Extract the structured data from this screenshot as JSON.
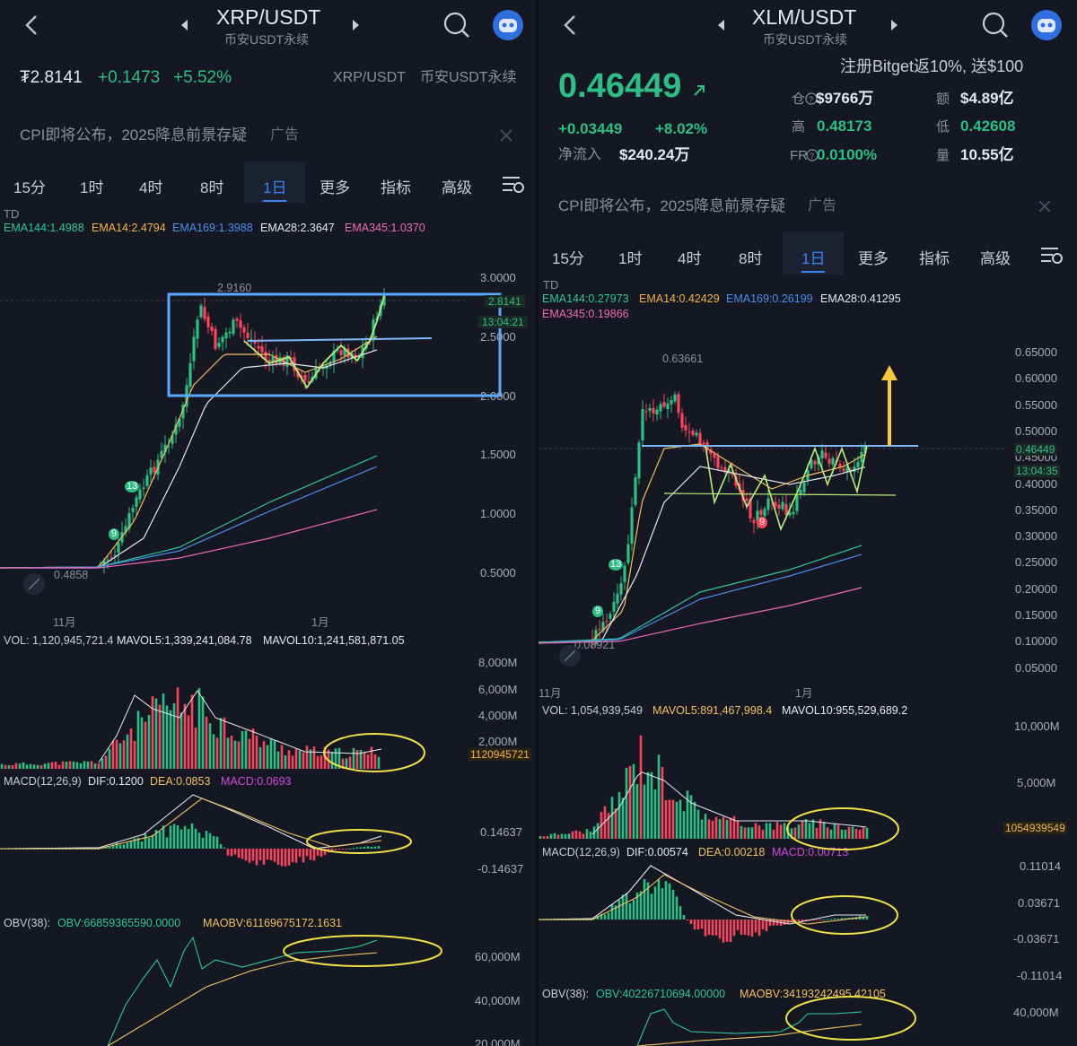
{
  "left": {
    "header": {
      "pair": "XRP/USDT",
      "subtitle": "币安USDT永续"
    },
    "price_row": {
      "price": "₮2.8141",
      "change": "+0.1473",
      "change_pct": "+5.52%",
      "pair_small": "XRP/USDT",
      "market_small": "币安USDT永续"
    },
    "ad": {
      "text": "CPI即将公布，2025降息前景存疑",
      "tag": "广告"
    },
    "tabs": [
      "15分",
      "1时",
      "4时",
      "8时",
      "1日",
      "更多",
      "指标",
      "高级"
    ],
    "active_tab": "1日",
    "td_label": "TD",
    "ema": {
      "ema144": "EMA144:1.4988",
      "ema14": "EMA14:2.4794",
      "ema169": "EMA169:1.3988",
      "ema28": "EMA28:2.3647",
      "ema345": "EMA345:1.0370"
    },
    "price_axis": [
      "3.0000",
      "2.5000",
      "2.0000",
      "1.5000",
      "1.0000",
      "0.5000"
    ],
    "current_price_tag": "2.8141",
    "countdown_tag": "13:04:21",
    "high_label": "2.9160",
    "low_label": "0.4858",
    "td_counts": [
      "13",
      "9"
    ],
    "x_labels": [
      "11月",
      "1月"
    ],
    "volume": {
      "vol": "VOL: 1,120,945,721.4",
      "mavol5": "MAVOL5:1,339,241,084.78",
      "mavol10": "MAVOL10:1,241,581,871.05",
      "axis": [
        "8,000M",
        "6,000M",
        "4,000M",
        "2,000M"
      ],
      "tag": "1120945721"
    },
    "macd": {
      "name": "MACD(12,26,9)",
      "dif": "DIF:0.1200",
      "dea": "DEA:0.0853",
      "macd": "MACD:0.0693",
      "axis": [
        "0.14637",
        "-0.14637"
      ]
    },
    "obv": {
      "name": "OBV(38):",
      "obv": "OBV:66859365590.0000",
      "maobv": "MAOBV:61169675172.1631",
      "axis": [
        "60,000M",
        "40,000M",
        "20,000M"
      ]
    }
  },
  "right": {
    "header": {
      "pair": "XLM/USDT",
      "subtitle": "币安USDT永续"
    },
    "promo": "注册Bitget返10%, 送$100",
    "price": "0.46449",
    "change": "+0.03449",
    "change_pct": "+8.02%",
    "net_inflow_label": "净流入",
    "net_inflow": "$240.24万",
    "stats": {
      "oi_label": "仓",
      "oi": "$9766万",
      "amount_label": "额",
      "amount": "$4.89亿",
      "high_label": "高",
      "high": "0.48173",
      "low_label": "低",
      "low": "0.42608",
      "fr_label": "FR",
      "fr": "0.0100%",
      "vol_label": "量",
      "vol": "10.55亿"
    },
    "ad": {
      "text": "CPI即将公布，2025降息前景存疑",
      "tag": "广告"
    },
    "tabs": [
      "15分",
      "1时",
      "4时",
      "8时",
      "1日",
      "更多",
      "指标",
      "高级"
    ],
    "active_tab": "1日",
    "td_label": "TD",
    "ema": {
      "ema144": "EMA144:0.27973",
      "ema14": "EMA14:0.42429",
      "ema169": "EMA169:0.26199",
      "ema28": "EMA28:0.41295",
      "ema345": "EMA345:0.19866"
    },
    "price_axis": [
      "0.65000",
      "0.60000",
      "0.55000",
      "0.50000",
      "0.45000",
      "0.40000",
      "0.35000",
      "0.30000",
      "0.25000",
      "0.20000",
      "0.15000",
      "0.10000",
      "0.05000"
    ],
    "current_price_tag": "0.46449",
    "countdown_tag": "13:04:35",
    "high_label": "0.63661",
    "low_label": "0.08921",
    "td_counts": [
      "9",
      "13",
      "9"
    ],
    "x_labels": [
      "11月",
      "1月"
    ],
    "volume": {
      "vol": "VOL: 1,054,939,549",
      "mavol5": "MAVOL5:891,467,998.4",
      "mavol10": "MAVOL10:955,529,689.2",
      "axis": [
        "10,000M",
        "5,000M"
      ],
      "tag": "1054939549"
    },
    "macd": {
      "name": "MACD(12,26,9)",
      "dif": "DIF:0.00574",
      "dea": "DEA:0.00218",
      "macd": "MACD:0.00713",
      "axis": [
        "0.11014",
        "0.03671",
        "-0.03671",
        "-0.11014"
      ]
    },
    "obv": {
      "name": "OBV(38):",
      "obv": "OBV:40226710694.00000",
      "maobv": "MAOBV:34193242495.42105",
      "axis": [
        "40,000M"
      ]
    }
  },
  "colors": {
    "up": "#2ebd85",
    "down": "#f6465d",
    "accent": "#3b82f6",
    "annotation": "#f0e04a",
    "box": "#5aa8ff"
  }
}
